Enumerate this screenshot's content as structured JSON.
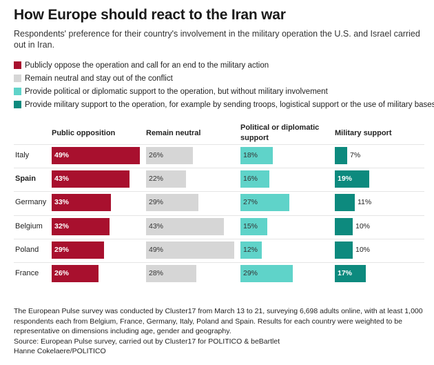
{
  "header": {
    "title": "How Europe should react to the Iran war",
    "subtitle": "Respondents' preference for their country's involvement in the military operation the U.S. and Israel carried out in Iran."
  },
  "legend": [
    {
      "label": "Publicly oppose the operation and call for an end to the military action",
      "color": "#a8102e"
    },
    {
      "label": "Remain neutral and stay out of the conflict",
      "color": "#d6d6d6"
    },
    {
      "label": "Provide political or diplomatic support to the operation, but without military involvement",
      "color": "#5fd3c9"
    },
    {
      "label": "Provide military support to the operation, for example by sending troops, logistical support or the use of military bases",
      "color": "#0d8a7e"
    }
  ],
  "chart_data": {
    "type": "bar",
    "title": "How Europe should react to the Iran war",
    "categories": [
      "Italy",
      "Spain",
      "Germany",
      "Belgium",
      "Poland",
      "France"
    ],
    "highlighted_category": "Spain",
    "series": [
      {
        "name": "Public opposition",
        "color": "#a8102e",
        "values": [
          49,
          43,
          33,
          32,
          29,
          26
        ],
        "labels": [
          "49%",
          "43%",
          "33%",
          "32%",
          "29%",
          "26%"
        ]
      },
      {
        "name": "Remain neutral",
        "color": "#d6d6d6",
        "values": [
          26,
          22,
          29,
          43,
          49,
          28
        ],
        "labels": [
          "26%",
          "22%",
          "29%",
          "43%",
          "49%",
          "28%"
        ]
      },
      {
        "name": "Political or diplomatic support",
        "color": "#5fd3c9",
        "values": [
          18,
          16,
          27,
          15,
          12,
          29
        ],
        "labels": [
          "18%",
          "16%",
          "27%",
          "15%",
          "12%",
          "29%"
        ]
      },
      {
        "name": "Military support",
        "color": "#0d8a7e",
        "values": [
          7,
          19,
          11,
          10,
          10,
          17
        ],
        "labels": [
          "7%",
          "19%",
          "11%",
          "10%",
          "10%",
          "17%"
        ]
      }
    ],
    "unit": "%"
  },
  "footer": {
    "methodology": "The European Pulse survey was conducted by Cluster17 from March 13 to 21, surveying 6,698 adults online, with at least 1,000 respondents each from Belgium, France, Germany, Italy, Poland and Spain. Results for each country were weighted to be representative on dimensions including age, gender and geography.",
    "source": "Source: European Pulse survey, carried out by Cluster17 for POLITICO & beBartlet",
    "credit": "Hanne Cokelaere/POLITICO"
  }
}
